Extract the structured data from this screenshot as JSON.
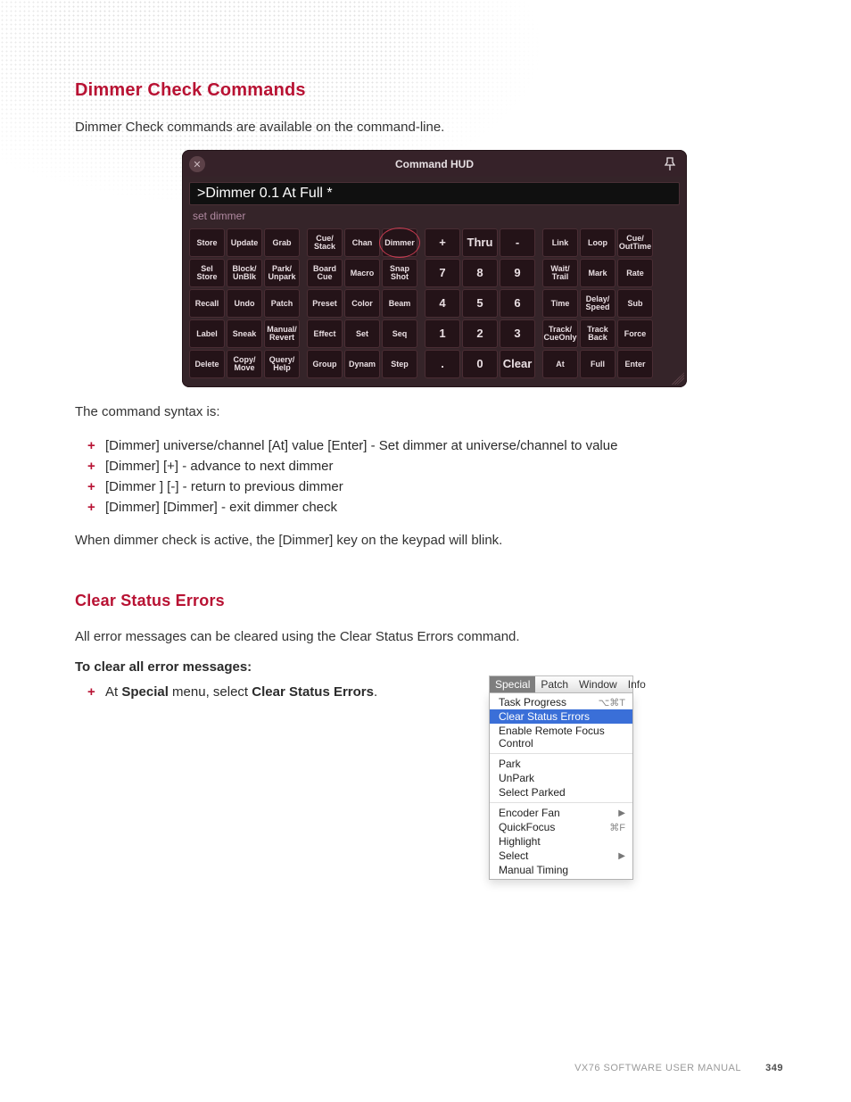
{
  "section1": {
    "heading": "Dimmer Check Commands",
    "intro": "Dimmer Check commands are available on the command-line.",
    "syntax_label": "The command syntax is:",
    "bullets": [
      "[Dimmer] universe/channel [At] value [Enter] - Set dimmer at universe/channel to value",
      "[Dimmer] [+] - advance to next dimmer",
      "[Dimmer ] [-] - return to previous dimmer",
      "[Dimmer] [Dimmer] - exit dimmer check"
    ],
    "footnote": "When dimmer check is active, the [Dimmer] key on the keypad will blink."
  },
  "hud": {
    "title": "Command HUD",
    "command_line": ">Dimmer 0.1 At Full *",
    "hint": "set dimmer",
    "highlight_key": "Dimmer",
    "colors": {
      "panel_bg": "#352429",
      "key_bg": "#241318",
      "key_border": "#4a2d34",
      "key_text": "#eadfe3",
      "title_text": "#e6dfe2",
      "hint_text": "#b089a0",
      "circle": "#c53a4f"
    },
    "groups": [
      [
        [
          "Store",
          "Update",
          "Grab"
        ],
        [
          "Sel Store",
          "Block/ UnBlk",
          "Park/ Unpark"
        ],
        [
          "Recall",
          "Undo",
          "Patch"
        ],
        [
          "Label",
          "Sneak",
          "Manual/ Revert"
        ],
        [
          "Delete",
          "Copy/ Move",
          "Query/ Help"
        ]
      ],
      [
        [
          "Cue/ Stack",
          "Chan",
          "Dimmer"
        ],
        [
          "Board Cue",
          "Macro",
          "Snap Shot"
        ],
        [
          "Preset",
          "Color",
          "Beam"
        ],
        [
          "Effect",
          "Set",
          "Seq"
        ],
        [
          "Group",
          "Dynam",
          "Step"
        ]
      ],
      [
        [
          "+",
          "Thru",
          "-"
        ],
        [
          "7",
          "8",
          "9"
        ],
        [
          "4",
          "5",
          "6"
        ],
        [
          "1",
          "2",
          "3"
        ],
        [
          ".",
          "0",
          "Clear"
        ]
      ],
      [
        [
          "Link",
          "Loop",
          "Cue/ OutTime"
        ],
        [
          "Wait/ Trail",
          "Mark",
          "Rate"
        ],
        [
          "Time",
          "Delay/ Speed",
          "Sub"
        ],
        [
          "Track/ CueOnly",
          "Track Back",
          "Force"
        ],
        [
          "At",
          "Full",
          "Enter"
        ]
      ]
    ],
    "num_group_index": 2
  },
  "section2": {
    "heading": "Clear Status Errors",
    "intro": "All error messages can be cleared using the Clear Status Errors command.",
    "sub": "To clear all error messages:",
    "bullet_prefix": "At ",
    "bullet_b1": "Special",
    "bullet_mid": " menu, select ",
    "bullet_b2": "Clear Status Errors",
    "bullet_suffix": "."
  },
  "menu": {
    "bar": [
      "Special",
      "Patch",
      "Window",
      "Info"
    ],
    "bar_selected_index": 0,
    "groups": [
      [
        {
          "label": "Task Progress",
          "shortcut": "⌥⌘T"
        },
        {
          "label": "Clear Status Errors",
          "selected": true
        },
        {
          "label": "Enable Remote Focus Control"
        }
      ],
      [
        {
          "label": "Park"
        },
        {
          "label": "UnPark"
        },
        {
          "label": "Select Parked"
        }
      ],
      [
        {
          "label": "Encoder Fan",
          "submenu": true
        },
        {
          "label": "QuickFocus",
          "shortcut": "⌘F"
        },
        {
          "label": "Highlight"
        },
        {
          "label": "Select",
          "submenu": true
        },
        {
          "label": "Manual Timing"
        }
      ]
    ],
    "colors": {
      "sel_bg": "#3a6fd8",
      "bar_sel_bg": "#7e7e7e"
    }
  },
  "footer": {
    "manual": "VX76 SOFTWARE USER MANUAL",
    "page": "349"
  }
}
